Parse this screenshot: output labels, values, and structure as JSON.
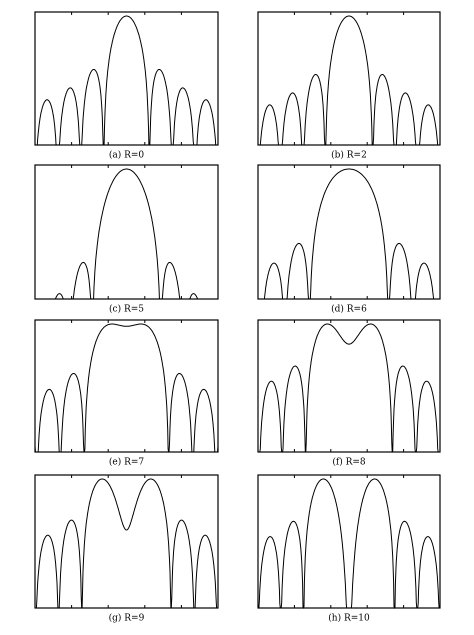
{
  "panels": [
    {
      "caption": "(a) R=0"
    },
    {
      "caption": "(b) R=2"
    },
    {
      "caption": "(c) R=5"
    },
    {
      "caption": "(d) R=6"
    },
    {
      "caption": "(e) R=7"
    },
    {
      "caption": "(f) R=8"
    },
    {
      "caption": "(g) R=9"
    },
    {
      "caption": "(h) R=10"
    }
  ]
}
